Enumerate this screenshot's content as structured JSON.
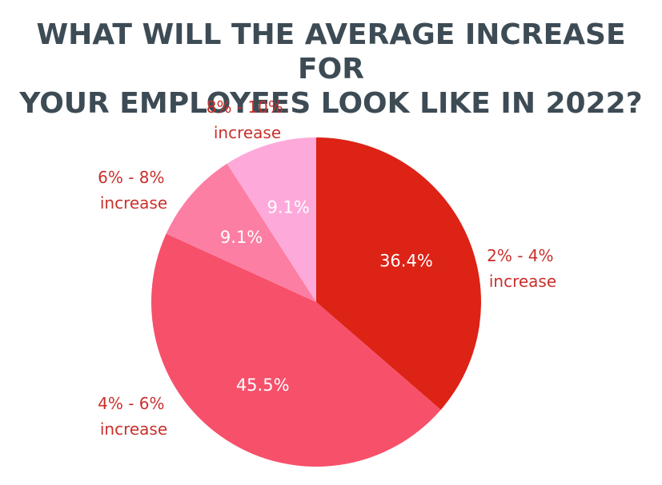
{
  "chart_data": {
    "type": "pie",
    "title_lines": [
      "WHAT WILL THE AVERAGE INCREASE FOR",
      "YOUR EMPLOYEES LOOK LIKE IN 2022?"
    ],
    "slices": [
      {
        "label_lines": [
          "2% - 4%",
          "increase"
        ],
        "value": 36.4,
        "value_label": "36.4%",
        "color": "#dc2316"
      },
      {
        "label_lines": [
          "4% - 6%",
          "increase"
        ],
        "value": 45.5,
        "value_label": "45.5%",
        "color": "#f7506b"
      },
      {
        "label_lines": [
          "6% - 8%",
          "increase"
        ],
        "value": 9.1,
        "value_label": "9.1%",
        "color": "#fd7ea3"
      },
      {
        "label_lines": [
          "8% - 10%",
          "increase"
        ],
        "value": 9.1,
        "value_label": "9.1%",
        "color": "#fdaadb"
      }
    ],
    "start": "12 o'clock",
    "direction": "clockwise",
    "legend": "none",
    "label_color": "#c9302c",
    "value_label_color": "#ffffff"
  }
}
